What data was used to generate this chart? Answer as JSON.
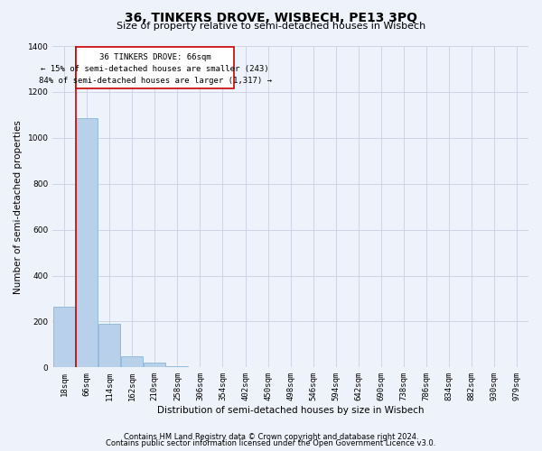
{
  "title": "36, TINKERS DROVE, WISBECH, PE13 3PQ",
  "subtitle": "Size of property relative to semi-detached houses in Wisbech",
  "xlabel": "Distribution of semi-detached houses by size in Wisbech",
  "ylabel": "Number of semi-detached properties",
  "footer_line1": "Contains HM Land Registry data © Crown copyright and database right 2024.",
  "footer_line2": "Contains public sector information licensed under the Open Government Licence v3.0.",
  "annotation_line1": "36 TINKERS DROVE: 66sqm",
  "annotation_line2": "← 15% of semi-detached houses are smaller (243)",
  "annotation_line3": "84% of semi-detached houses are larger (1,317) →",
  "bar_color": "#b8d0ea",
  "bar_edge_color": "#7aafd4",
  "highlight_color": "#cc0000",
  "background_color": "#eef2fa",
  "grid_color": "#c8d0e0",
  "ylim": [
    0,
    1400
  ],
  "yticks": [
    0,
    200,
    400,
    600,
    800,
    1000,
    1200,
    1400
  ],
  "categories": [
    "18sqm",
    "66sqm",
    "114sqm",
    "162sqm",
    "210sqm",
    "258sqm",
    "306sqm",
    "354sqm",
    "402sqm",
    "450sqm",
    "498sqm",
    "546sqm",
    "594sqm",
    "642sqm",
    "690sqm",
    "738sqm",
    "786sqm",
    "834sqm",
    "882sqm",
    "930sqm",
    "979sqm"
  ],
  "values": [
    265,
    1085,
    190,
    47,
    20,
    5,
    2,
    1,
    0,
    0,
    0,
    0,
    0,
    0,
    0,
    0,
    0,
    0,
    0,
    0,
    0
  ],
  "property_index": 1,
  "title_fontsize": 10,
  "subtitle_fontsize": 8,
  "xlabel_fontsize": 7.5,
  "ylabel_fontsize": 7.5,
  "tick_fontsize": 6.5,
  "annot_fontsize": 6.5,
  "footer_fontsize": 6
}
